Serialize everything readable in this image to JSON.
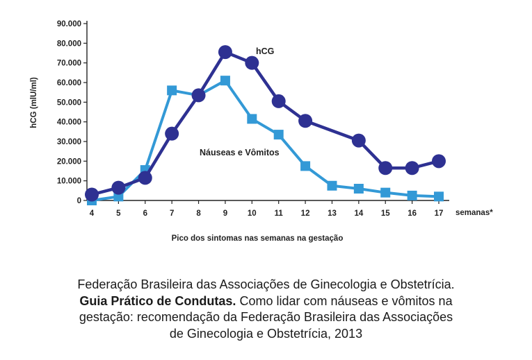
{
  "chart_data": {
    "type": "line",
    "x": [
      4,
      5,
      6,
      7,
      8,
      9,
      10,
      11,
      12,
      13,
      14,
      15,
      16,
      17
    ],
    "x_tick_labels": [
      "4",
      "5",
      "6",
      "7",
      "8",
      "9",
      "10",
      "11",
      "12",
      "13",
      "14",
      "15",
      "16",
      "17"
    ],
    "y_tick_labels": [
      "0",
      "10.000",
      "20.000",
      "30.000",
      "40.000",
      "50.000",
      "60.000",
      "70.000",
      "80.000",
      "90.000"
    ],
    "y_ticks": [
      0,
      10000,
      20000,
      30000,
      40000,
      50000,
      60000,
      70000,
      80000,
      90000
    ],
    "xlabel": "semanas*",
    "ylabel": "hCG (mlU/ml)",
    "xlim": [
      4,
      17
    ],
    "ylim": [
      0,
      90000
    ],
    "bottom_label": "Pico dos sintomas nas semanas na gestação",
    "series": [
      {
        "name": "hCG",
        "marker": "circle",
        "color": "#2e3192",
        "x": [
          4,
          5,
          6,
          7,
          8,
          9,
          10,
          11,
          12,
          13,
          14,
          15,
          16,
          17
        ],
        "values": [
          3000,
          6500,
          11500,
          34000,
          53500,
          75500,
          70000,
          50500,
          40500,
          null,
          30500,
          16500,
          16500,
          20000
        ]
      },
      {
        "name": "Náuseas e Vômitos",
        "marker": "square",
        "color": "#3399d6",
        "x": [
          4,
          5,
          6,
          7,
          8,
          9,
          10,
          11,
          12,
          13,
          14,
          15,
          16,
          17
        ],
        "values": [
          0,
          2000,
          15500,
          56000,
          53500,
          61000,
          41500,
          33500,
          17500,
          7500,
          6000,
          4000,
          2500,
          2000
        ]
      }
    ]
  },
  "caption": {
    "line1": "Federação Brasileira das Associações de Ginecologia e Obstetrícia.",
    "line2_bold": "Guia Prático de Condutas.",
    "line2_rest": " Como lidar com náuseas e vômitos na",
    "line3": "gestação: recomendação da Federação Brasileira das Associações",
    "line4": "de Ginecologia e Obstetrícia, 2013"
  }
}
